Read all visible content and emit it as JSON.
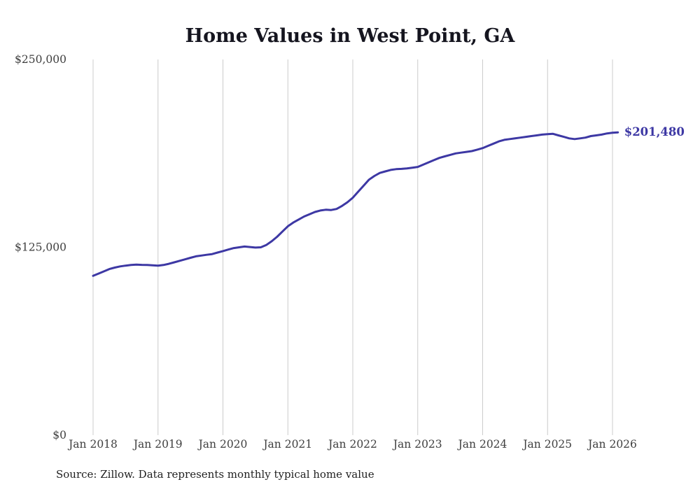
{
  "chart_data": {
    "type": "line",
    "title": "Home Values in West Point, GA",
    "source_note": "Source: Zillow. Data represents monthly typical home value",
    "end_label": "$201,480",
    "end_value": 201480,
    "accent_color": "#3d38a4",
    "gridline_color": "#cccccc",
    "ylim": [
      0,
      250000
    ],
    "y_ticks": [
      {
        "value": 0,
        "label": "$0"
      },
      {
        "value": 125000,
        "label": "$125,000"
      },
      {
        "value": 250000,
        "label": "$250,000"
      }
    ],
    "x_tick_months": [
      0,
      12,
      24,
      36,
      48,
      60,
      72,
      84,
      96
    ],
    "x_tick_labels": [
      "Jan 2018",
      "Jan 2019",
      "Jan 2020",
      "Jan 2021",
      "Jan 2022",
      "Jan 2023",
      "Jan 2024",
      "Jan 2025",
      "Jan 2026"
    ],
    "start_month": "2018-01",
    "frequency": "monthly",
    "values": [
      106000,
      107500,
      109000,
      110500,
      111500,
      112300,
      112800,
      113200,
      113500,
      113300,
      113200,
      113000,
      112800,
      113200,
      114000,
      115000,
      116000,
      117000,
      118000,
      119000,
      119500,
      120000,
      120500,
      121500,
      122500,
      123500,
      124500,
      125000,
      125500,
      125200,
      124800,
      125000,
      126500,
      129000,
      132000,
      135500,
      139000,
      141500,
      143500,
      145500,
      147000,
      148500,
      149500,
      150000,
      149800,
      150500,
      152500,
      155000,
      158000,
      162000,
      166000,
      170000,
      172500,
      174500,
      175500,
      176500,
      177000,
      177200,
      177500,
      178000,
      178500,
      180000,
      181500,
      183000,
      184500,
      185500,
      186500,
      187500,
      188000,
      188500,
      189000,
      190000,
      191000,
      192500,
      194000,
      195500,
      196500,
      197000,
      197500,
      198000,
      198500,
      199000,
      199500,
      200000,
      200300,
      200500,
      199500,
      198500,
      197500,
      197000,
      197500,
      198000,
      199000,
      199500,
      200000,
      200800,
      201200,
      201480
    ]
  }
}
